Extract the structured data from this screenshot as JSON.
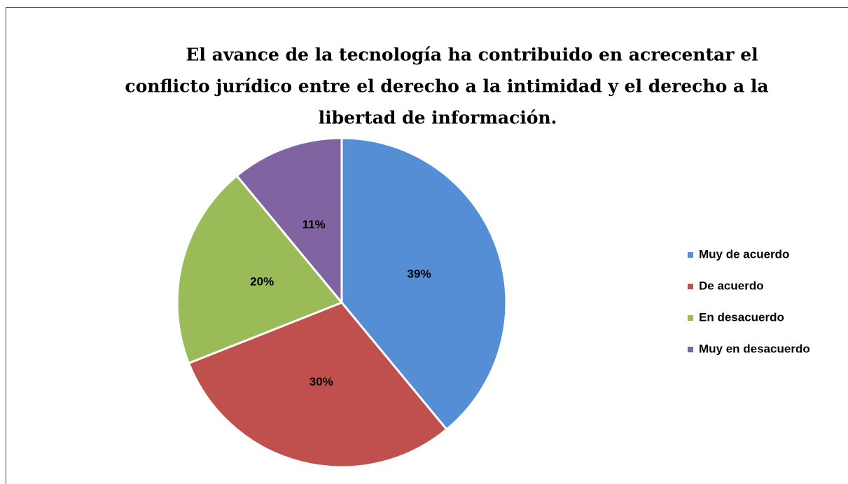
{
  "chart_data": {
    "type": "pie",
    "title": [
      "El avance de la tecnología ha contribuido en acrecentar el",
      "conflicto jurídico entre el derecho a la intimidad y el derecho a la",
      "libertad de información."
    ],
    "categories": [
      "Muy de acuerdo",
      "De acuerdo",
      "En desacuerdo",
      "Muy en desacuerdo"
    ],
    "values": [
      39,
      30,
      20,
      11
    ],
    "value_labels": [
      "39%",
      "30%",
      "20%",
      "11%"
    ],
    "colors": [
      "#558ed5",
      "#c0504d",
      "#9bbb59",
      "#8064a2"
    ],
    "legend": "right"
  }
}
